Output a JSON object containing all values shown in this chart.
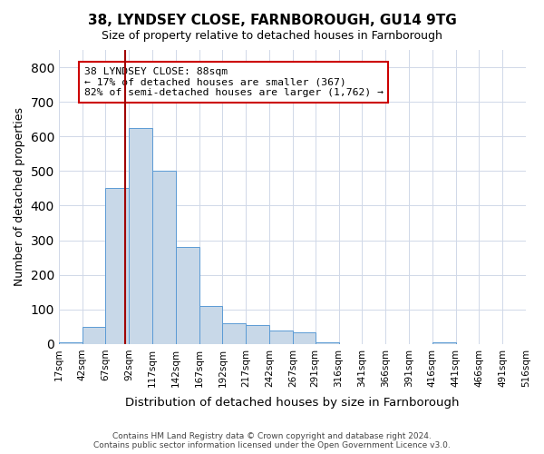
{
  "title": "38, LYNDSEY CLOSE, FARNBOROUGH, GU14 9TG",
  "subtitle": "Size of property relative to detached houses in Farnborough",
  "xlabel": "Distribution of detached houses by size in Farnborough",
  "ylabel": "Number of detached properties",
  "bar_color": "#c8d8e8",
  "bar_edge_color": "#5b9bd5",
  "vline_color": "#a00000",
  "vline_x": 88,
  "annotation_text": "38 LYNDSEY CLOSE: 88sqm\n← 17% of detached houses are smaller (367)\n82% of semi-detached houses are larger (1,762) →",
  "annotation_box_color": "#ffffff",
  "annotation_box_edge_color": "#cc0000",
  "bin_edges": [
    17,
    42,
    67,
    92,
    117,
    142,
    167,
    192,
    217,
    242,
    267,
    291,
    316,
    341,
    366,
    391,
    416,
    441,
    466,
    491,
    516
  ],
  "bin_counts": [
    5,
    50,
    450,
    625,
    500,
    280,
    110,
    60,
    55,
    40,
    35,
    5,
    0,
    0,
    0,
    0,
    5,
    0,
    0,
    0
  ],
  "tick_labels": [
    "17sqm",
    "42sqm",
    "67sqm",
    "92sqm",
    "117sqm",
    "142sqm",
    "167sqm",
    "192sqm",
    "217sqm",
    "242sqm",
    "267sqm",
    "291sqm",
    "316sqm",
    "341sqm",
    "366sqm",
    "391sqm",
    "416sqm",
    "441sqm",
    "466sqm",
    "491sqm",
    "516sqm"
  ],
  "ylim": [
    0,
    850
  ],
  "yticks": [
    0,
    100,
    200,
    300,
    400,
    500,
    600,
    700,
    800
  ],
  "footer": "Contains HM Land Registry data © Crown copyright and database right 2024.\nContains public sector information licensed under the Open Government Licence v3.0.",
  "background_color": "#ffffff",
  "grid_color": "#d0d8e8"
}
